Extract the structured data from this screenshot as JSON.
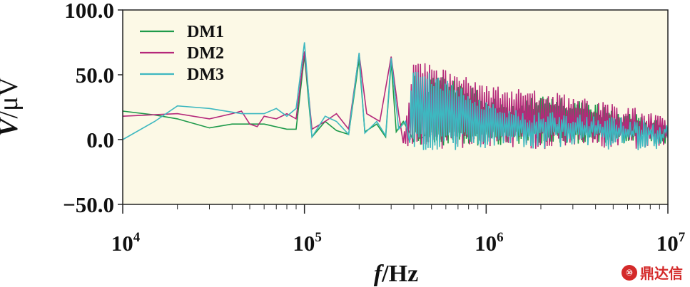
{
  "chart_data": {
    "type": "line",
    "xlabel": "f/Hz",
    "ylabel": "V/μV",
    "xscale": "log",
    "xlim": [
      10000,
      10000000
    ],
    "ylim": [
      -50,
      100
    ],
    "yticks": [
      "100.0",
      "50.0",
      "0.0",
      "−50.0"
    ],
    "ytick_values": [
      100,
      50,
      0,
      -50
    ],
    "xticks": [
      {
        "base": "10",
        "exp": "4",
        "value": 10000
      },
      {
        "base": "10",
        "exp": "5",
        "value": 100000
      },
      {
        "base": "10",
        "exp": "6",
        "value": 1000000
      },
      {
        "base": "10",
        "exp": "7",
        "value": 10000000
      }
    ],
    "grid": false,
    "legend_position": "top-left",
    "background_color": "#fcf9e6",
    "series": [
      {
        "name": "DM1",
        "color": "#1e9a4a",
        "points": [
          [
            10000,
            22
          ],
          [
            15000,
            19
          ],
          [
            20000,
            16
          ],
          [
            30000,
            9
          ],
          [
            40000,
            12
          ],
          [
            60000,
            12
          ],
          [
            80000,
            8
          ],
          [
            90000,
            8
          ],
          [
            100000,
            65
          ],
          [
            110000,
            2
          ],
          [
            130000,
            14
          ],
          [
            150000,
            7
          ],
          [
            175000,
            4
          ],
          [
            200000,
            62
          ],
          [
            215000,
            6
          ],
          [
            250000,
            12
          ],
          [
            280000,
            2
          ],
          [
            300000,
            60
          ],
          [
            320000,
            6
          ],
          [
            350000,
            14
          ],
          [
            380000,
            5
          ],
          [
            400000,
            58
          ],
          [
            450000,
            4
          ],
          [
            500000,
            55
          ],
          [
            600000,
            50
          ],
          [
            700000,
            45
          ],
          [
            800000,
            42
          ],
          [
            900000,
            38
          ],
          [
            1000000,
            34
          ],
          [
            1500000,
            28
          ],
          [
            2000000,
            36
          ],
          [
            3000000,
            32
          ],
          [
            4000000,
            28
          ],
          [
            5000000,
            24
          ],
          [
            7000000,
            20
          ],
          [
            10000000,
            14
          ]
        ],
        "noise_from": 400000,
        "noise_amp": 18
      },
      {
        "name": "DM2",
        "color": "#b5287a",
        "points": [
          [
            10000,
            18
          ],
          [
            20000,
            20
          ],
          [
            30000,
            16
          ],
          [
            40000,
            20
          ],
          [
            45000,
            22
          ],
          [
            50000,
            12
          ],
          [
            55000,
            10
          ],
          [
            60000,
            18
          ],
          [
            70000,
            16
          ],
          [
            80000,
            20
          ],
          [
            90000,
            16
          ],
          [
            100000,
            68
          ],
          [
            110000,
            8
          ],
          [
            130000,
            14
          ],
          [
            150000,
            20
          ],
          [
            175000,
            8
          ],
          [
            200000,
            66
          ],
          [
            220000,
            20
          ],
          [
            260000,
            14
          ],
          [
            300000,
            64
          ],
          [
            330000,
            20
          ],
          [
            360000,
            14
          ],
          [
            400000,
            62
          ],
          [
            500000,
            58
          ],
          [
            600000,
            54
          ],
          [
            700000,
            50
          ],
          [
            800000,
            48
          ],
          [
            900000,
            45
          ],
          [
            1000000,
            42
          ],
          [
            1500000,
            40
          ],
          [
            2000000,
            38
          ],
          [
            3000000,
            34
          ],
          [
            4000000,
            30
          ],
          [
            5000000,
            28
          ],
          [
            7000000,
            24
          ],
          [
            10000000,
            16
          ]
        ],
        "noise_from": 350000,
        "noise_amp": 22
      },
      {
        "name": "DM3",
        "color": "#3db8c0",
        "points": [
          [
            10000,
            0
          ],
          [
            15000,
            14
          ],
          [
            20000,
            26
          ],
          [
            30000,
            24
          ],
          [
            45000,
            20
          ],
          [
            60000,
            20
          ],
          [
            70000,
            24
          ],
          [
            80000,
            18
          ],
          [
            90000,
            24
          ],
          [
            100000,
            75
          ],
          [
            110000,
            2
          ],
          [
            130000,
            18
          ],
          [
            150000,
            14
          ],
          [
            175000,
            4
          ],
          [
            200000,
            67
          ],
          [
            215000,
            5
          ],
          [
            250000,
            14
          ],
          [
            280000,
            3
          ],
          [
            300000,
            63
          ],
          [
            330000,
            8
          ],
          [
            360000,
            14
          ],
          [
            400000,
            58
          ],
          [
            500000,
            52
          ],
          [
            600000,
            46
          ],
          [
            700000,
            42
          ],
          [
            800000,
            38
          ],
          [
            900000,
            34
          ],
          [
            1000000,
            30
          ],
          [
            1500000,
            24
          ],
          [
            2000000,
            22
          ],
          [
            3000000,
            20
          ],
          [
            5000000,
            18
          ],
          [
            7000000,
            16
          ],
          [
            10000000,
            12
          ]
        ],
        "noise_from": 380000,
        "noise_amp": 24
      }
    ]
  },
  "watermark": {
    "icon_text": "⑩",
    "text": "鼎达信"
  }
}
